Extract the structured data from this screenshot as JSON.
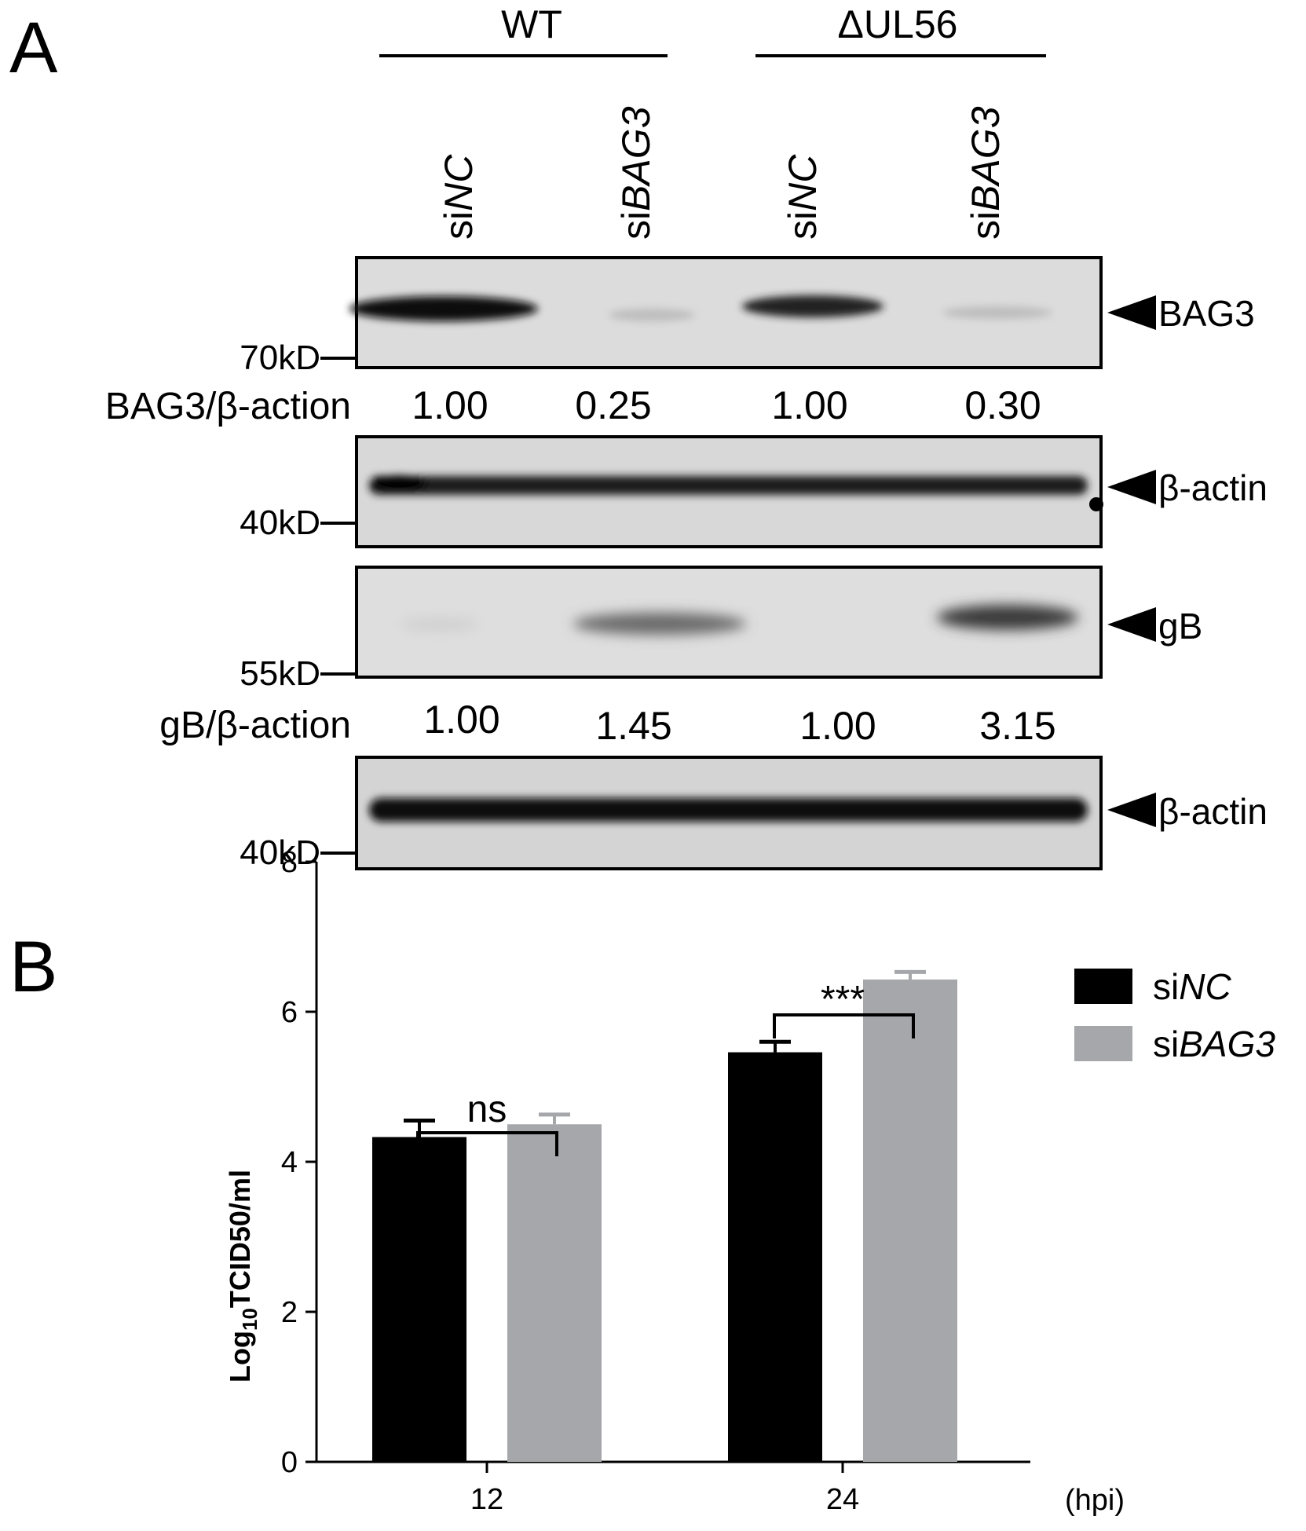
{
  "panel_a": {
    "letter": "A",
    "groups": [
      {
        "label": "WT"
      },
      {
        "label": "ΔUL56"
      }
    ],
    "lanes": [
      {
        "prefix": "si",
        "name": "NC"
      },
      {
        "prefix": "si",
        "name": "BAG3"
      },
      {
        "prefix": "si",
        "name": "NC"
      },
      {
        "prefix": "si",
        "name": "BAG3"
      }
    ],
    "blots": [
      {
        "target": "BAG3",
        "marker": "70kD"
      },
      {
        "target": "β-actin",
        "marker": "40kD"
      },
      {
        "target": "gB",
        "marker": "55kD"
      },
      {
        "target": "β-actin",
        "marker": "40kD"
      }
    ],
    "ratios": [
      {
        "label": "BAG3/β-action",
        "values": [
          "1.00",
          "0.25",
          "1.00",
          "0.30"
        ]
      },
      {
        "label": "gB/β-action",
        "values": [
          "1.00",
          "1.45",
          "1.00",
          "3.15"
        ]
      }
    ]
  },
  "panel_b": {
    "letter": "B",
    "ylabel_main": "Log",
    "ylabel_sub": "10",
    "ylabel_rest": "TCID50/ml",
    "x_unit": "(hpi)",
    "significance": [
      "ns",
      "***"
    ]
  },
  "chart_data": {
    "type": "bar",
    "categories": [
      "12",
      "24"
    ],
    "series": [
      {
        "name": "siNC",
        "name_prefix": "si",
        "name_italic": "NC",
        "color": "#000000",
        "values": [
          4.33,
          5.46
        ],
        "errors": [
          0.22,
          0.14
        ]
      },
      {
        "name": "siBAG3",
        "name_prefix": "si",
        "name_italic": "BAG3",
        "color": "#a6a7ab",
        "values": [
          4.5,
          6.43
        ],
        "errors": [
          0.13,
          0.1
        ]
      }
    ],
    "ylim": [
      0,
      8
    ],
    "yticks": [
      "0",
      "2",
      "4",
      "6",
      "8"
    ],
    "xlabel": "(hpi)",
    "ylabel": "Log10TCID50/ml",
    "legend_position": "top-right"
  }
}
